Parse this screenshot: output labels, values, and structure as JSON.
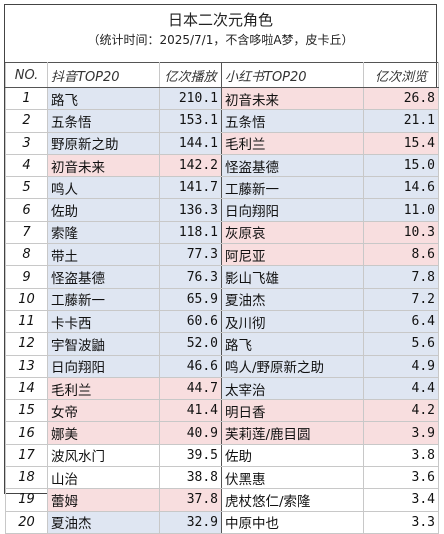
{
  "title": "日本二次元角色",
  "subtitle": "（统计时间：2025/7/1，不含哆啦A梦，皮卡丘）",
  "headers": {
    "rank": "NO.",
    "douyin": "抖音TOP20",
    "douyin_metric": "亿次播放",
    "xhs": "小红书TOP20",
    "xhs_metric": "亿次浏览"
  },
  "colors": {
    "blue_row": "#dfe6f2",
    "pink_row": "#f8dedf",
    "white_row": "#ffffff"
  },
  "chart_data": {
    "type": "table",
    "title": "日本二次元角色",
    "subtitle": "（统计时间：2025/7/1，不含哆啦A梦，皮卡丘）",
    "columns": [
      "NO.",
      "抖音TOP20",
      "亿次播放",
      "小红书TOP20",
      "亿次浏览"
    ],
    "rows": [
      {
        "rank": "1",
        "douyin_name": "路飞",
        "douyin_value": "210.1",
        "xhs_name": "初音未来",
        "xhs_value": "26.8",
        "d_hl": "blue",
        "x_hl": "pink"
      },
      {
        "rank": "2",
        "douyin_name": "五条悟",
        "douyin_value": "153.1",
        "xhs_name": "五条悟",
        "xhs_value": "21.1",
        "d_hl": "blue",
        "x_hl": "blue"
      },
      {
        "rank": "3",
        "douyin_name": "野原新之助",
        "douyin_value": "144.1",
        "xhs_name": "毛利兰",
        "xhs_value": "15.4",
        "d_hl": "blue",
        "x_hl": "pink"
      },
      {
        "rank": "4",
        "douyin_name": "初音未来",
        "douyin_value": "142.2",
        "xhs_name": "怪盗基德",
        "xhs_value": "15.0",
        "d_hl": "pink",
        "x_hl": "blue"
      },
      {
        "rank": "5",
        "douyin_name": "鸣人",
        "douyin_value": "141.7",
        "xhs_name": "工藤新一",
        "xhs_value": "14.6",
        "d_hl": "blue",
        "x_hl": "blue"
      },
      {
        "rank": "6",
        "douyin_name": "佐助",
        "douyin_value": "136.3",
        "xhs_name": "日向翔阳",
        "xhs_value": "11.0",
        "d_hl": "blue",
        "x_hl": "blue"
      },
      {
        "rank": "7",
        "douyin_name": "索隆",
        "douyin_value": "118.1",
        "xhs_name": "灰原哀",
        "xhs_value": "10.3",
        "d_hl": "blue",
        "x_hl": "pink"
      },
      {
        "rank": "8",
        "douyin_name": "带土",
        "douyin_value": "77.3",
        "xhs_name": "阿尼亚",
        "xhs_value": "8.6",
        "d_hl": "blue",
        "x_hl": "pink"
      },
      {
        "rank": "9",
        "douyin_name": "怪盗基德",
        "douyin_value": "76.3",
        "xhs_name": "影山飞雄",
        "xhs_value": "7.8",
        "d_hl": "blue",
        "x_hl": "blue"
      },
      {
        "rank": "10",
        "douyin_name": "工藤新一",
        "douyin_value": "65.9",
        "xhs_name": "夏油杰",
        "xhs_value": "7.2",
        "d_hl": "blue",
        "x_hl": "blue"
      },
      {
        "rank": "11",
        "douyin_name": "卡卡西",
        "douyin_value": "60.6",
        "xhs_name": "及川彻",
        "xhs_value": "6.4",
        "d_hl": "blue",
        "x_hl": "blue"
      },
      {
        "rank": "12",
        "douyin_name": "宇智波鼬",
        "douyin_value": "52.0",
        "xhs_name": "路飞",
        "xhs_value": "5.6",
        "d_hl": "blue",
        "x_hl": "blue"
      },
      {
        "rank": "13",
        "douyin_name": "日向翔阳",
        "douyin_value": "46.6",
        "xhs_name": "鸣人/野原新之助",
        "xhs_value": "4.9",
        "d_hl": "blue",
        "x_hl": "blue"
      },
      {
        "rank": "14",
        "douyin_name": "毛利兰",
        "douyin_value": "44.7",
        "xhs_name": "太宰治",
        "xhs_value": "4.4",
        "d_hl": "pink",
        "x_hl": "blue"
      },
      {
        "rank": "15",
        "douyin_name": "女帝",
        "douyin_value": "41.4",
        "xhs_name": "明日香",
        "xhs_value": "4.2",
        "d_hl": "pink",
        "x_hl": "pink"
      },
      {
        "rank": "16",
        "douyin_name": "娜美",
        "douyin_value": "40.9",
        "xhs_name": "芙莉莲/鹿目圆",
        "xhs_value": "3.9",
        "d_hl": "pink",
        "x_hl": "pink"
      },
      {
        "rank": "17",
        "douyin_name": "波风水门",
        "douyin_value": "39.5",
        "xhs_name": "佐助",
        "xhs_value": "3.8",
        "d_hl": "white",
        "x_hl": "white"
      },
      {
        "rank": "18",
        "douyin_name": "山治",
        "douyin_value": "38.8",
        "xhs_name": "伏黑惠",
        "xhs_value": "3.6",
        "d_hl": "white",
        "x_hl": "white"
      },
      {
        "rank": "19",
        "douyin_name": "蕾姆",
        "douyin_value": "37.8",
        "xhs_name": "虎杖悠仁/索隆",
        "xhs_value": "3.4",
        "d_hl": "pink",
        "x_hl": "white"
      },
      {
        "rank": "20",
        "douyin_name": "夏油杰",
        "douyin_value": "32.9",
        "xhs_name": "中原中也",
        "xhs_value": "3.3",
        "d_hl": "blue",
        "x_hl": "white"
      }
    ]
  }
}
